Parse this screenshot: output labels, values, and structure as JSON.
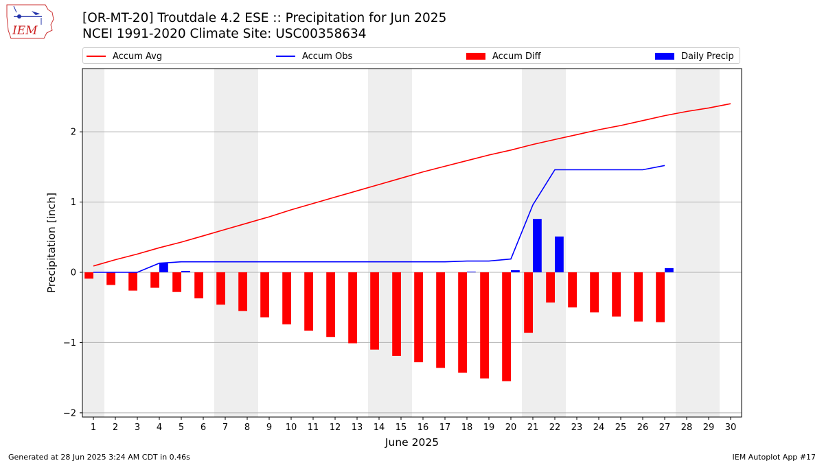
{
  "logo": {
    "text": "IEM"
  },
  "title": {
    "line1": "[OR-MT-20] Troutdale 4.2 ESE :: Precipitation for Jun 2025",
    "line2": "NCEI 1991-2020 Climate Site: USC00358634"
  },
  "legend": [
    {
      "label": "Accum Avg",
      "kind": "line",
      "color": "#ff0000"
    },
    {
      "label": "Accum Obs",
      "kind": "line",
      "color": "#0000ff"
    },
    {
      "label": "Accum Diff",
      "kind": "box",
      "color": "#ff0000"
    },
    {
      "label": "Daily Precip",
      "kind": "box",
      "color": "#0000ff"
    }
  ],
  "footer": {
    "left": "Generated at 28 Jun 2025 3:24 AM CDT in 0.46s",
    "right": "IEM Autoplot App #17"
  },
  "chart_data": {
    "type": "bar",
    "xlabel": "June 2025",
    "ylabel": "Precipitation [inch]",
    "xlim": [
      0.5,
      30.5
    ],
    "ylim": [
      -2.06,
      2.9
    ],
    "yticks": [
      -2,
      -1,
      0,
      1,
      2
    ],
    "grid": "horizontal",
    "legend_placement": "top",
    "weekend_shading": [
      [
        1,
        1
      ],
      [
        7,
        8
      ],
      [
        14,
        15
      ],
      [
        21,
        22
      ],
      [
        28,
        29
      ]
    ],
    "categories": [
      "1",
      "2",
      "3",
      "4",
      "5",
      "6",
      "7",
      "8",
      "9",
      "10",
      "11",
      "12",
      "13",
      "14",
      "15",
      "16",
      "17",
      "18",
      "19",
      "20",
      "21",
      "22",
      "23",
      "24",
      "25",
      "26",
      "27",
      "28",
      "29",
      "30"
    ],
    "series": [
      {
        "name": "Accum Avg",
        "type": "line",
        "color": "#ff0000",
        "x": [
          1,
          2,
          3,
          4,
          5,
          6,
          7,
          8,
          9,
          10,
          11,
          12,
          13,
          14,
          15,
          16,
          17,
          18,
          19,
          20,
          21,
          22,
          23,
          24,
          25,
          26,
          27,
          28,
          29,
          30
        ],
        "values": [
          0.09,
          0.18,
          0.26,
          0.35,
          0.43,
          0.52,
          0.61,
          0.7,
          0.79,
          0.89,
          0.98,
          1.07,
          1.16,
          1.25,
          1.34,
          1.43,
          1.51,
          1.59,
          1.67,
          1.74,
          1.82,
          1.89,
          1.96,
          2.03,
          2.09,
          2.16,
          2.23,
          2.29,
          2.34,
          2.4
        ]
      },
      {
        "name": "Accum Obs",
        "type": "line",
        "color": "#0000ff",
        "x": [
          1,
          2,
          3,
          4,
          5,
          6,
          7,
          8,
          9,
          10,
          11,
          12,
          13,
          14,
          15,
          16,
          17,
          18,
          19,
          20,
          21,
          22,
          23,
          24,
          25,
          26,
          27
        ],
        "values": [
          0.0,
          0.0,
          0.0,
          0.13,
          0.15,
          0.15,
          0.15,
          0.15,
          0.15,
          0.15,
          0.15,
          0.15,
          0.15,
          0.15,
          0.15,
          0.15,
          0.15,
          0.16,
          0.16,
          0.19,
          0.96,
          1.46,
          1.46,
          1.46,
          1.46,
          1.46,
          1.52
        ]
      },
      {
        "name": "Accum Diff",
        "type": "bar",
        "color": "#ff0000",
        "x": [
          1,
          2,
          3,
          4,
          5,
          6,
          7,
          8,
          9,
          10,
          11,
          12,
          13,
          14,
          15,
          16,
          17,
          18,
          19,
          20,
          21,
          22,
          23,
          24,
          25,
          26,
          27
        ],
        "values": [
          -0.09,
          -0.18,
          -0.26,
          -0.22,
          -0.28,
          -0.37,
          -0.46,
          -0.55,
          -0.64,
          -0.74,
          -0.83,
          -0.92,
          -1.01,
          -1.1,
          -1.19,
          -1.28,
          -1.36,
          -1.43,
          -1.51,
          -1.55,
          -0.86,
          -0.43,
          -0.5,
          -0.57,
          -0.63,
          -0.7,
          -0.71
        ]
      },
      {
        "name": "Daily Precip",
        "type": "bar",
        "color": "#0000ff",
        "x": [
          1,
          2,
          3,
          4,
          5,
          6,
          7,
          8,
          9,
          10,
          11,
          12,
          13,
          14,
          15,
          16,
          17,
          18,
          19,
          20,
          21,
          22,
          23,
          24,
          25,
          26,
          27
        ],
        "values": [
          0,
          0,
          0,
          0.13,
          0.02,
          0,
          0,
          0,
          0,
          0,
          0,
          0,
          0,
          0,
          0,
          0,
          0,
          0.01,
          0,
          0.03,
          0.76,
          0.51,
          0,
          0,
          0,
          0,
          0.06
        ]
      }
    ]
  }
}
